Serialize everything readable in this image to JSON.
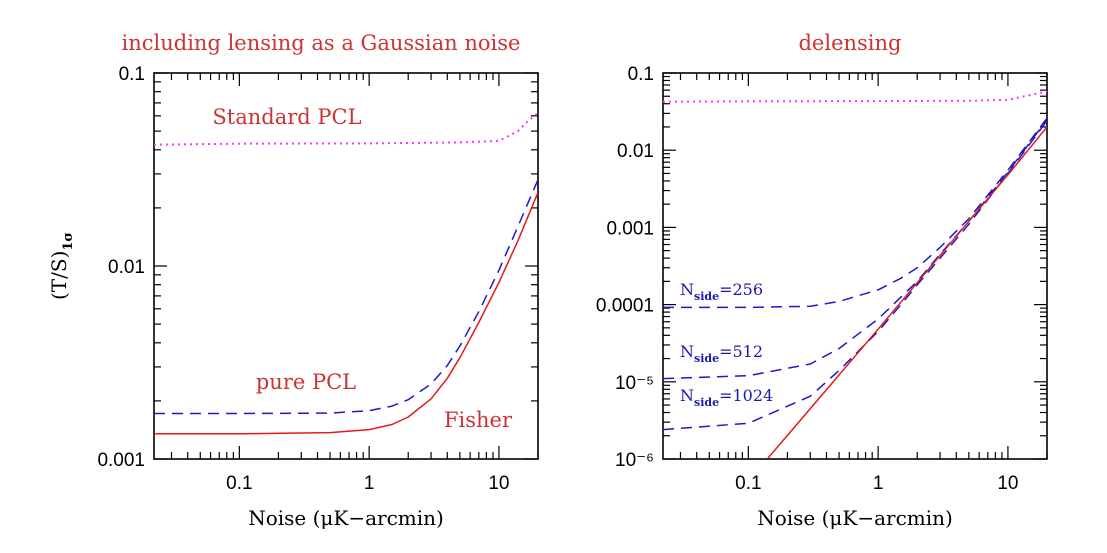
{
  "figure": {
    "ylabel_text": "(T/S)",
    "ylabel_sub": "1σ"
  },
  "chart_data": [
    {
      "type": "line",
      "title": "including lensing as a Gaussian noise",
      "xlabel": "Noise (μK−arcmin)",
      "ylabel": "(T/S)1σ",
      "xscale": "log",
      "yscale": "log",
      "xlim": [
        0.022,
        20
      ],
      "ylim": [
        0.001,
        0.1
      ],
      "xtick_labels": [
        "0.1",
        "1",
        "10"
      ],
      "ytick_labels": [
        "0.001",
        "0.01",
        "0.1"
      ],
      "annotations": [
        "Standard PCL",
        "pure PCL",
        "Fisher"
      ],
      "series": [
        {
          "color": "#ff33ff",
          "style": "dotted",
          "x": [
            0.022,
            0.1,
            1,
            5,
            10,
            14,
            17,
            20
          ],
          "y": [
            0.0425,
            0.043,
            0.0432,
            0.0437,
            0.0445,
            0.05,
            0.057,
            0.062
          ]
        },
        {
          "color": "#1a1acc",
          "style": "dashed",
          "x": [
            0.022,
            0.1,
            0.5,
            1,
            1.5,
            2,
            3,
            4,
            5,
            7,
            10,
            14,
            20
          ],
          "y": [
            0.00172,
            0.00172,
            0.00173,
            0.00178,
            0.00188,
            0.00203,
            0.00245,
            0.00305,
            0.00385,
            0.0058,
            0.0095,
            0.016,
            0.028
          ]
        },
        {
          "color": "#e41a1a",
          "style": "solid",
          "x": [
            0.022,
            0.1,
            0.5,
            1,
            1.5,
            2,
            3,
            4,
            5,
            7,
            10,
            14,
            20
          ],
          "y": [
            0.00135,
            0.00135,
            0.00137,
            0.00142,
            0.00151,
            0.00165,
            0.00205,
            0.00262,
            0.00335,
            0.0051,
            0.0082,
            0.0135,
            0.024
          ]
        }
      ]
    },
    {
      "type": "line",
      "title": "delensing",
      "xlabel": "Noise (μK−arcmin)",
      "xscale": "log",
      "yscale": "log",
      "xlim": [
        0.022,
        20
      ],
      "ylim": [
        1e-06,
        0.1
      ],
      "xtick_labels": [
        "0.1",
        "1",
        "10"
      ],
      "ytick_labels": [
        "0.1",
        "0.01",
        "0.001",
        "0.0001",
        "10⁻⁵",
        "10⁻⁶"
      ],
      "annotations": [
        {
          "main": "N",
          "sub": "side",
          "rest": "=256"
        },
        {
          "main": "N",
          "sub": "side",
          "rest": "=512"
        },
        {
          "main": "N",
          "sub": "side",
          "rest": "=1024"
        }
      ],
      "series": [
        {
          "color": "#ff33ff",
          "style": "dotted",
          "x": [
            0.022,
            0.1,
            1,
            5,
            10,
            15,
            20
          ],
          "y": [
            0.0425,
            0.043,
            0.0432,
            0.0437,
            0.045,
            0.052,
            0.058
          ]
        },
        {
          "color": "#1a1acc",
          "style": "dashed",
          "x": [
            0.022,
            0.1,
            0.3,
            0.5,
            1,
            1.5,
            2,
            3,
            5,
            10,
            20
          ],
          "y": [
            9.2e-05,
            9.2e-05,
            9.5e-05,
            0.00011,
            0.000155,
            0.00022,
            0.0003,
            0.00055,
            0.0013,
            0.0055,
            0.026
          ]
        },
        {
          "color": "#1a1acc",
          "style": "dashed",
          "x": [
            0.022,
            0.1,
            0.3,
            0.5,
            1,
            1.5,
            2,
            3,
            5,
            10,
            20
          ],
          "y": [
            1.1e-05,
            1.2e-05,
            1.7e-05,
            2.7e-05,
            6.5e-05,
            0.000125,
            0.0002,
            0.00045,
            0.0012,
            0.0052,
            0.025
          ]
        },
        {
          "color": "#1a1acc",
          "style": "dashed",
          "x": [
            0.022,
            0.1,
            0.3,
            0.5,
            1,
            1.5,
            2,
            3,
            5,
            10,
            20
          ],
          "y": [
            2.4e-06,
            2.9e-06,
            6.5e-06,
            1.4e-05,
            4.5e-05,
            0.0001,
            0.00018,
            0.0004,
            0.0011,
            0.005,
            0.024
          ]
        },
        {
          "color": "#e41a1a",
          "style": "solid",
          "x": [
            0.14,
            1,
            10,
            20
          ],
          "y": [
            1e-06,
            4.8e-05,
            0.0048,
            0.02
          ]
        }
      ]
    }
  ]
}
